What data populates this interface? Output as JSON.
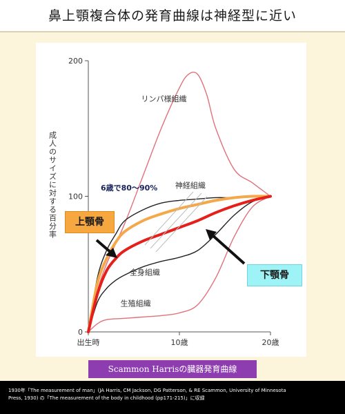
{
  "slide": {
    "title": "鼻上顎複合体の発育曲線は神経型に近い",
    "caption": "Scammon Harrisの臓器発育曲線",
    "footer_line1": "1930年「The measurement of man」(JA Harris, CM Jackson, DG Patterson, & RE Scammon, University of Minnesota",
    "footer_line2": "Press, 1930) の「The measurement of the body in childhood (pp171-215)」に収録"
  },
  "chart_data": {
    "type": "line",
    "title": "",
    "xlabel": "",
    "ylabel": "成人のサイズに対する百分率",
    "x_ticks": [
      "出生時",
      "10歳",
      "20歳"
    ],
    "x_tick_values": [
      0,
      10,
      20
    ],
    "y_ticks": [
      "0",
      "100",
      "200"
    ],
    "y_tick_values": [
      0,
      100,
      200
    ],
    "xlim": [
      0,
      20
    ],
    "ylim": [
      0,
      200
    ],
    "series": [
      {
        "name": "リンパ様組織",
        "color": "#e0707a",
        "x": [
          0,
          1,
          2,
          4,
          6,
          8,
          10,
          11,
          12,
          13,
          14,
          16,
          18,
          20
        ],
        "y": [
          0,
          30,
          50,
          80,
          115,
          150,
          180,
          190,
          190,
          175,
          150,
          120,
          110,
          100
        ]
      },
      {
        "name": "神経組織",
        "color": "#222222",
        "x": [
          0,
          1,
          2,
          3,
          4,
          6,
          8,
          10,
          12,
          14,
          16,
          18,
          20
        ],
        "y": [
          0,
          40,
          60,
          72,
          82,
          90,
          95,
          97,
          98,
          99,
          99,
          100,
          100
        ]
      },
      {
        "name": "全身組織",
        "color": "#222222",
        "x": [
          0,
          1,
          2,
          3,
          4,
          6,
          8,
          10,
          12,
          14,
          16,
          18,
          20
        ],
        "y": [
          0,
          22,
          32,
          38,
          42,
          48,
          52,
          55,
          60,
          72,
          86,
          96,
          100
        ]
      },
      {
        "name": "生殖組織",
        "color": "#e0707a",
        "x": [
          0,
          1,
          2,
          4,
          6,
          8,
          10,
          12,
          14,
          16,
          18,
          20
        ],
        "y": [
          0,
          6,
          9,
          10,
          11,
          12,
          14,
          20,
          40,
          70,
          92,
          100
        ]
      },
      {
        "name": "上顎骨",
        "color": "#f5a849",
        "x": [
          0,
          1,
          2,
          3,
          4,
          6,
          8,
          10,
          12,
          14,
          16,
          18,
          20
        ],
        "y": [
          0,
          36,
          54,
          66,
          74,
          82,
          87,
          91,
          94,
          97,
          99,
          100,
          100
        ]
      },
      {
        "name": "下顎骨",
        "color": "#e5201a",
        "x": [
          0,
          1,
          2,
          3,
          4,
          6,
          8,
          10,
          12,
          14,
          16,
          18,
          20
        ],
        "y": [
          0,
          28,
          45,
          54,
          60,
          67,
          72,
          77,
          82,
          88,
          93,
          97,
          100
        ]
      }
    ],
    "annotations": {
      "age_note": "6歳で80〜90%",
      "upper_jaw_label": "上顎骨",
      "lower_jaw_label": "下顎骨"
    },
    "grid": false,
    "legend": "none"
  }
}
